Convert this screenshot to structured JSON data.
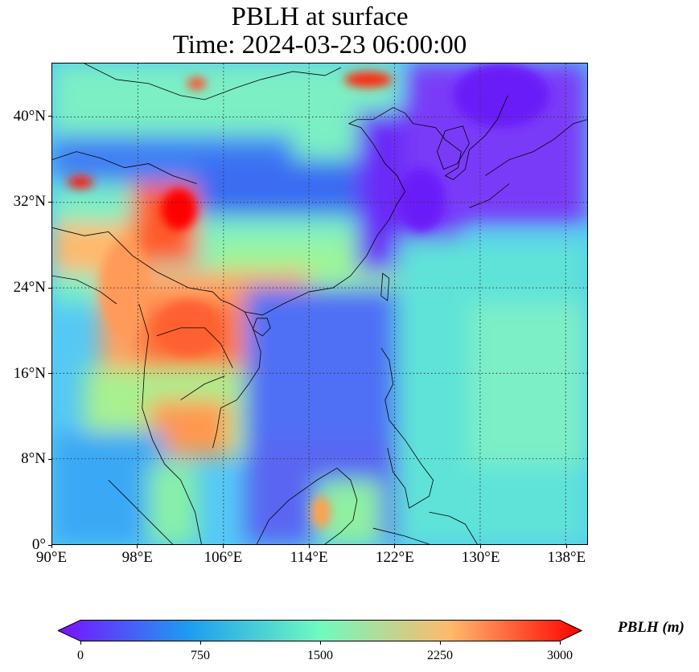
{
  "title": {
    "line1": "PBLH at surface",
    "line2": "Time: 2024-03-23 06:00:00"
  },
  "map": {
    "lon_range": [
      90,
      140
    ],
    "lat_range": [
      0,
      45
    ],
    "lon_ticks": [
      {
        "value": 90,
        "label": "90°E"
      },
      {
        "value": 98,
        "label": "98°E"
      },
      {
        "value": 106,
        "label": "106°E"
      },
      {
        "value": 114,
        "label": "114°E"
      },
      {
        "value": 122,
        "label": "122°E"
      },
      {
        "value": 130,
        "label": "130°E"
      },
      {
        "value": 138,
        "label": "138°E"
      }
    ],
    "lat_ticks": [
      {
        "value": 0,
        "label": "0°"
      },
      {
        "value": 8,
        "label": "8°N"
      },
      {
        "value": 16,
        "label": "16°N"
      },
      {
        "value": 24,
        "label": "24°N"
      },
      {
        "value": 32,
        "label": "32°N"
      },
      {
        "value": 40,
        "label": "40°N"
      }
    ],
    "gridlines": "dotted",
    "coastlines": true
  },
  "colorbar": {
    "label": "PBLH (m)",
    "min": 0,
    "max": 3000,
    "ticks": [
      {
        "value": 0,
        "label": "0"
      },
      {
        "value": 750,
        "label": "750"
      },
      {
        "value": 1500,
        "label": "1500"
      },
      {
        "value": 2250,
        "label": "2250"
      },
      {
        "value": 3000,
        "label": "3000"
      }
    ],
    "extend": "both",
    "colormap": "rainbow",
    "colors": [
      "#7a10ff",
      "#1e9cf0",
      "#6ffac0",
      "#ffb96b",
      "#ff0000"
    ]
  }
}
